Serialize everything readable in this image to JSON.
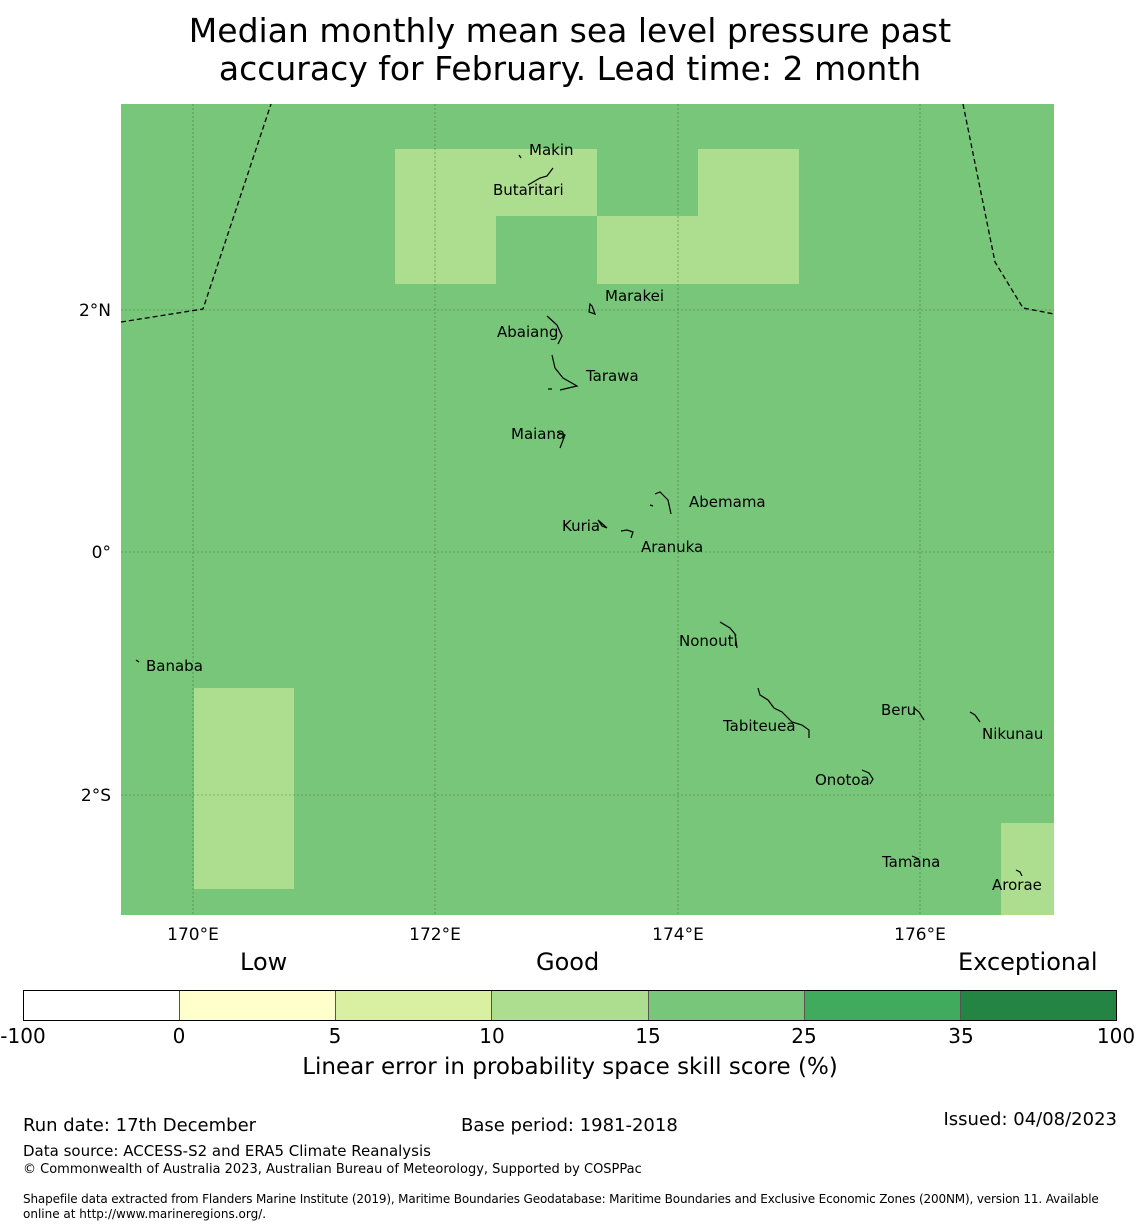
{
  "title_line1": "Median monthly mean sea level pressure past",
  "title_line2": "accuracy for February. Lead time: 2 month",
  "map": {
    "lon_labels": [
      "170°E",
      "172°E",
      "174°E",
      "176°E"
    ],
    "lat_labels": [
      "2°N",
      "0°",
      "2°S"
    ],
    "background_color": "#78c679",
    "highlight_color": "#addd8e",
    "islands": [
      "Makin",
      "Butaritari",
      "Marakei",
      "Abaiang",
      "Tarawa",
      "Maiana",
      "Abemama",
      "Kuria",
      "Aranuka",
      "Nonouti",
      "Banaba",
      "Tabiteuea",
      "Beru",
      "Nikunau",
      "Onotoa",
      "Tamana",
      "Arorae"
    ]
  },
  "legend": {
    "categories": [
      "Low",
      "Good",
      "Exceptional"
    ],
    "ticks": [
      "-100",
      "0",
      "5",
      "10",
      "15",
      "25",
      "35",
      "100"
    ],
    "colors": [
      "#ffffff",
      "#ffffcc",
      "#d9f0a3",
      "#addd8e",
      "#78c679",
      "#41ab5d",
      "#238443"
    ],
    "label": "Linear error in probability space skill score (%)"
  },
  "footer": {
    "run_date": "Run date: 17th December",
    "base_period": "Base period: 1981-2018",
    "issued": "Issued: 04/08/2023",
    "data_source": "Data source: ACCESS-S2 and ERA5 Climate Reanalysis",
    "copyright": "© Commonwealth of Australia 2023, Australian Bureau of Meteorology, Supported by COSPPac",
    "shapefile_line1": "Shapefile data extracted from Flanders Marine Institute (2019), Maritime Boundaries Geodatabase: Maritime Boundaries and Exclusive Economic Zones (200NM), version 11. Available",
    "shapefile_line2": "online at http://www.marineregions.org/."
  }
}
